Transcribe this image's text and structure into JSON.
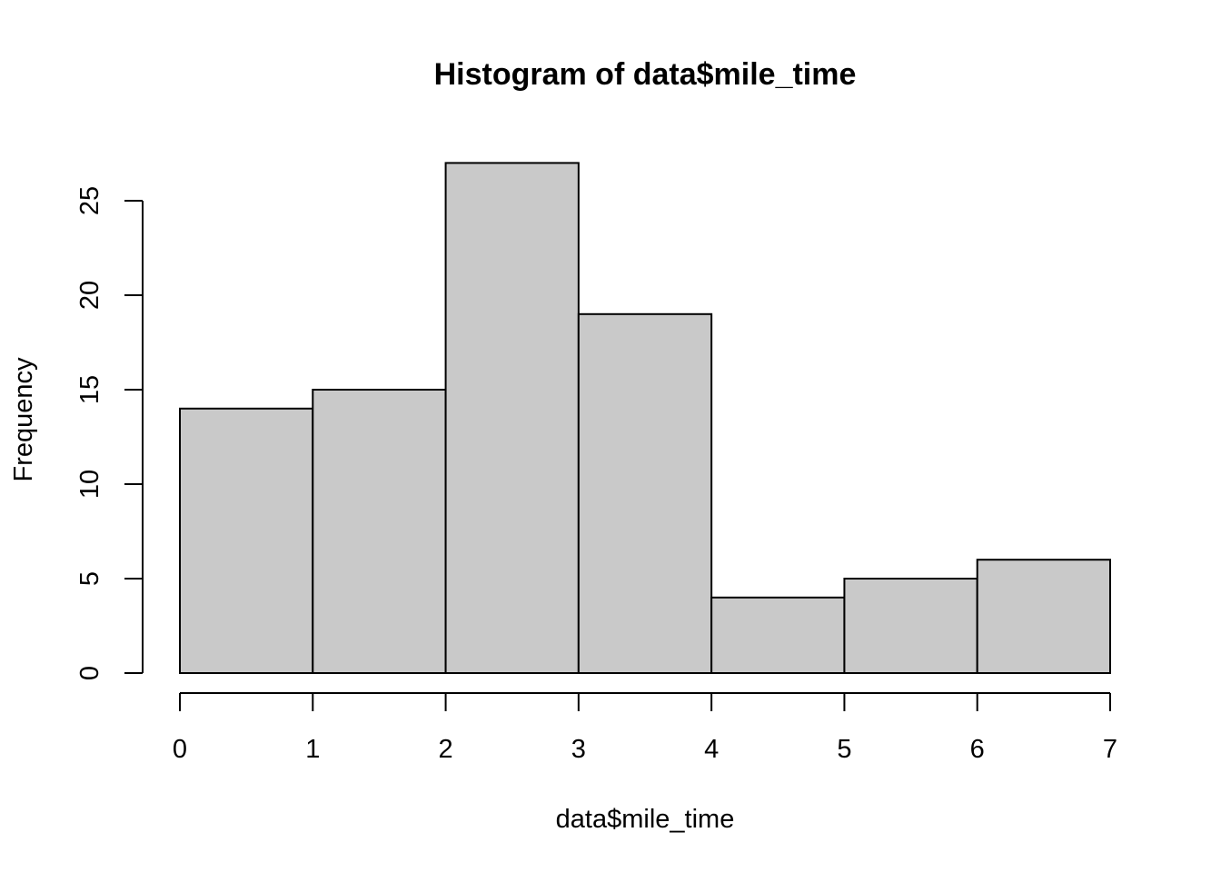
{
  "chart_data": {
    "type": "bar",
    "title": "Histogram of data$mile_time",
    "xlabel": "data$mile_time",
    "ylabel": "Frequency",
    "bins": [
      {
        "from": 0,
        "to": 1,
        "count": 14
      },
      {
        "from": 1,
        "to": 2,
        "count": 15
      },
      {
        "from": 2,
        "to": 3,
        "count": 27
      },
      {
        "from": 3,
        "to": 4,
        "count": 19
      },
      {
        "from": 4,
        "to": 5,
        "count": 4
      },
      {
        "from": 5,
        "to": 6,
        "count": 5
      },
      {
        "from": 6,
        "to": 7,
        "count": 6
      }
    ],
    "xlim": [
      0,
      7
    ],
    "ylim": [
      0,
      27
    ],
    "x_ticks": [
      0,
      1,
      2,
      3,
      4,
      5,
      6,
      7
    ],
    "y_ticks": [
      0,
      5,
      10,
      15,
      20,
      25
    ],
    "grid": false,
    "colors": {
      "bar_fill": "#c9c9c9",
      "bar_stroke": "#000000"
    }
  }
}
